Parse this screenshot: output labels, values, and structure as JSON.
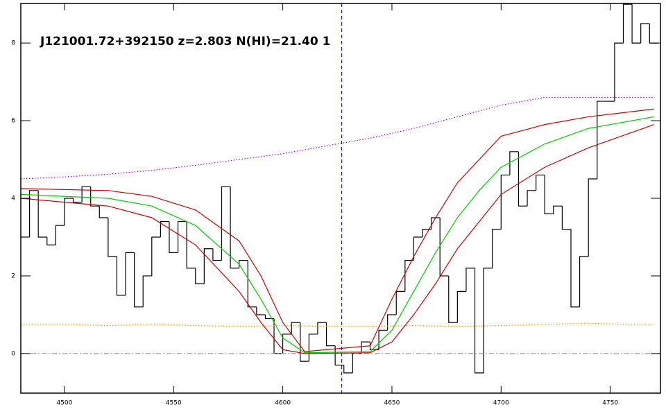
{
  "chart_data": {
    "type": "line",
    "title": "J121001.72+392150 z=2.803 N(HI)=21.40 1",
    "xlim": [
      4480,
      4773
    ],
    "ylim": [
      -1.02,
      9.02
    ],
    "xticks": [
      4500,
      4550,
      4600,
      4650,
      4700,
      4750
    ],
    "yticks": [
      0,
      2,
      4,
      6,
      8
    ],
    "grid": false,
    "vline": {
      "x": 4627,
      "color": "#0000cc",
      "dash": "dashed"
    },
    "series": [
      {
        "color": "#000000",
        "dash": "solid",
        "steps": true,
        "x": [
          4482,
          4486,
          4490,
          4494,
          4498,
          4502,
          4506,
          4510,
          4514,
          4518,
          4522,
          4526,
          4530,
          4534,
          4538,
          4542,
          4546,
          4550,
          4554,
          4558,
          4562,
          4566,
          4570,
          4574,
          4578,
          4582,
          4586,
          4590,
          4594,
          4598,
          4602,
          4606,
          4610,
          4614,
          4618,
          4622,
          4626,
          4630,
          4634,
          4638,
          4642,
          4646,
          4650,
          4654,
          4658,
          4662,
          4666,
          4670,
          4674,
          4678,
          4682,
          4686,
          4690,
          4694,
          4698,
          4702,
          4706,
          4710,
          4714,
          4718,
          4722,
          4726,
          4730,
          4734,
          4738,
          4742,
          4746,
          4750,
          4754,
          4758,
          4762,
          4766,
          4770
        ],
        "values": [
          3.0,
          4.2,
          3.0,
          2.8,
          3.3,
          4.0,
          3.9,
          4.3,
          3.8,
          3.5,
          2.5,
          1.5,
          2.6,
          1.2,
          2.0,
          3.0,
          3.4,
          2.6,
          3.4,
          2.2,
          1.8,
          2.7,
          2.4,
          4.3,
          2.2,
          2.4,
          1.2,
          1.0,
          0.9,
          0.0,
          0.5,
          0.8,
          -0.2,
          0.5,
          0.8,
          0.2,
          -0.3,
          -0.5,
          0.0,
          0.3,
          0.1,
          0.6,
          1.0,
          1.6,
          2.4,
          3.0,
          3.2,
          3.5,
          2.0,
          0.8,
          1.6,
          2.2,
          -0.5,
          2.2,
          3.2,
          4.6,
          5.2,
          3.8,
          4.2,
          4.6,
          3.6,
          3.8,
          3.2,
          1.2,
          2.5,
          4.5,
          6.5,
          6.5,
          8.0,
          9.0,
          8.0,
          8.5,
          8.0
        ]
      },
      {
        "color": "#9900ff",
        "dash": "dotted",
        "steps": false,
        "x": [
          4480,
          4500,
          4520,
          4540,
          4560,
          4580,
          4600,
          4620,
          4640,
          4660,
          4680,
          4700,
          4720,
          4740,
          4760,
          4770
        ],
        "values": [
          4.5,
          4.55,
          4.62,
          4.72,
          4.85,
          5.0,
          5.15,
          5.35,
          5.55,
          5.8,
          6.1,
          6.4,
          6.6,
          6.6,
          6.6,
          6.6
        ]
      },
      {
        "color": "#ff9900",
        "dash": "dotted",
        "steps": false,
        "x": [
          4480,
          4500,
          4520,
          4540,
          4560,
          4580,
          4600,
          4620,
          4640,
          4660,
          4680,
          4700,
          4720,
          4740,
          4760,
          4770
        ],
        "values": [
          0.75,
          0.75,
          0.72,
          0.75,
          0.72,
          0.7,
          0.72,
          0.7,
          0.7,
          0.72,
          0.7,
          0.72,
          0.75,
          0.78,
          0.75,
          0.75
        ]
      },
      {
        "color": "#999999",
        "dash": "dashdot",
        "steps": false,
        "x": [
          4480,
          4773
        ],
        "values": [
          0,
          0
        ]
      },
      {
        "color": "#00cc00",
        "dash": "solid",
        "steps": false,
        "x": [
          4480,
          4520,
          4540,
          4560,
          4580,
          4590,
          4600,
          4610,
          4640,
          4650,
          4660,
          4670,
          4680,
          4690,
          4700,
          4720,
          4740,
          4770
        ],
        "values": [
          4.1,
          4.0,
          3.8,
          3.3,
          2.3,
          1.4,
          0.4,
          0.02,
          0.05,
          0.6,
          1.6,
          2.6,
          3.5,
          4.2,
          4.8,
          5.4,
          5.8,
          6.1
        ]
      },
      {
        "color": "#cc0000",
        "dash": "solid",
        "steps": false,
        "x": [
          4480,
          4520,
          4540,
          4560,
          4580,
          4590,
          4600,
          4610,
          4640,
          4650,
          4660,
          4670,
          4680,
          4690,
          4700,
          4720,
          4740,
          4770
        ],
        "values": [
          4.25,
          4.2,
          4.05,
          3.7,
          2.9,
          2.0,
          0.8,
          0.05,
          0.2,
          1.4,
          2.5,
          3.5,
          4.4,
          5.0,
          5.6,
          5.9,
          6.1,
          6.3
        ]
      },
      {
        "color": "#cc0000",
        "dash": "solid",
        "steps": false,
        "x": [
          4480,
          4520,
          4540,
          4560,
          4580,
          4590,
          4600,
          4610,
          4640,
          4650,
          4660,
          4670,
          4680,
          4690,
          4700,
          4720,
          4740,
          4770
        ],
        "values": [
          4.0,
          3.8,
          3.5,
          2.8,
          1.6,
          0.8,
          0.1,
          0.0,
          0.02,
          0.3,
          1.0,
          1.8,
          2.7,
          3.4,
          4.1,
          4.8,
          5.3,
          5.9
        ]
      }
    ]
  }
}
